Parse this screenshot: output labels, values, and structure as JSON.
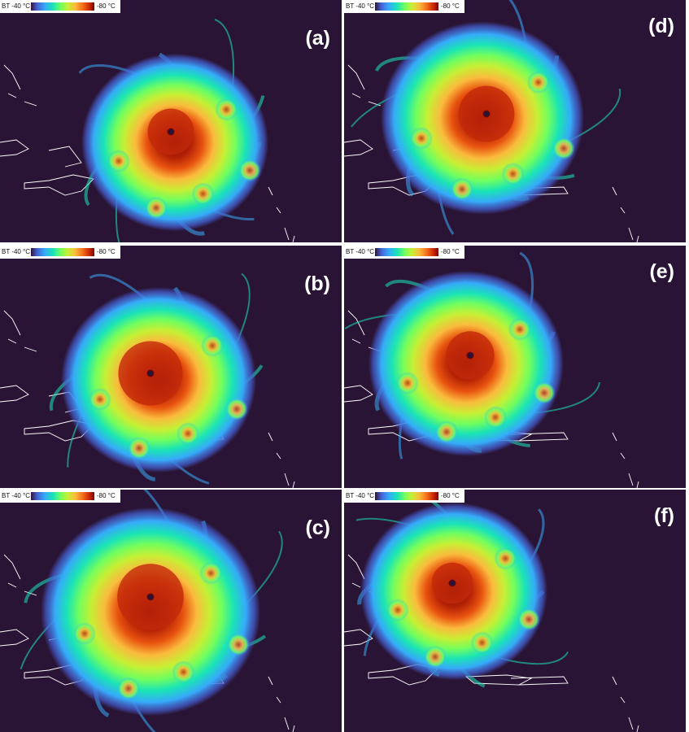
{
  "panels": [
    {
      "label": "(a)",
      "colorbar": {
        "min_label": "BT -40 °C",
        "max_label": "-80 °C"
      }
    },
    {
      "label": "(b)",
      "colorbar": {
        "min_label": "BT -40 °C",
        "max_label": "-80 °C"
      }
    },
    {
      "label": "(c)",
      "colorbar": {
        "min_label": "BT -40 °C",
        "max_label": "-80 °C"
      }
    },
    {
      "label": "(d)",
      "colorbar": {
        "min_label": "BT -40 °C",
        "max_label": "-80 °C"
      }
    },
    {
      "label": "(e)",
      "colorbar": {
        "min_label": "BT -40 °C",
        "max_label": "-80 °C"
      }
    },
    {
      "label": "(f)",
      "colorbar": {
        "min_label": "BT -40 °C",
        "max_label": "-80 °C"
      }
    }
  ]
}
